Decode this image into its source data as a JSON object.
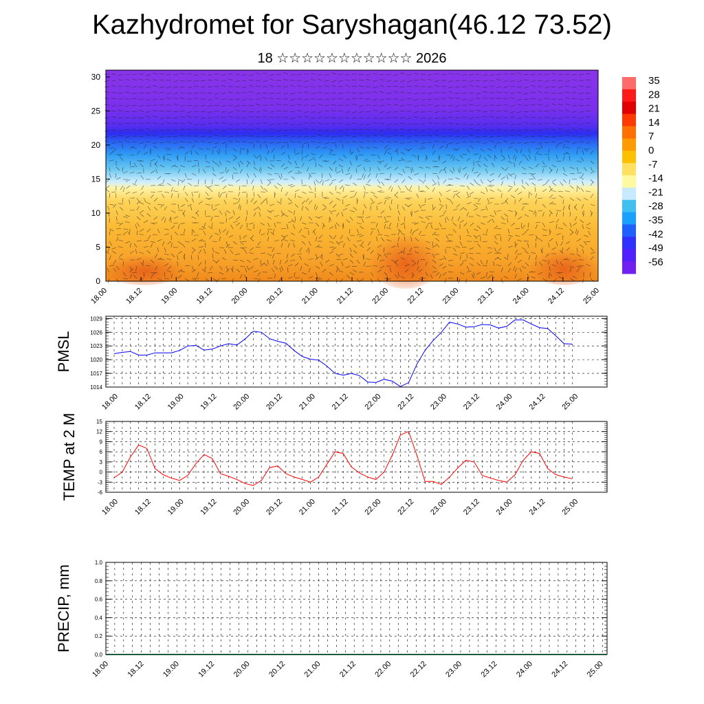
{
  "title": "Kazhydromet for Saryshagan(46.12 73.52)",
  "subtitle": "18 ☆☆☆☆☆☆☆☆☆☆☆ 2026",
  "time_ticks": [
    "18.00",
    "18.12",
    "19.00",
    "19.12",
    "20.00",
    "20.12",
    "21.00",
    "21.12",
    "22.00",
    "22.12",
    "23.00",
    "23.12",
    "24.00",
    "24.12",
    "25.00"
  ],
  "colors": {
    "pmsl_line": "#0000ff",
    "temp_line": "#ff0000",
    "frame": "#000000",
    "grid": "#000000"
  },
  "chart_data": [
    {
      "type": "heatmap",
      "name_hint": "vertical section",
      "y_ticks": [
        "0",
        "5",
        "10",
        "15",
        "20",
        "25",
        "30"
      ],
      "ylim": [
        0,
        31
      ],
      "x_range": [
        "18.00",
        "25.00"
      ],
      "colorbar": {
        "labels": [
          "35",
          "28",
          "21",
          "14",
          "7",
          "0",
          "-7",
          "-14",
          "-21",
          "-28",
          "-35",
          "-42",
          "-49",
          "-56"
        ],
        "palette": [
          "#ff6a6a",
          "#ff1a1a",
          "#e00000",
          "#ff3a00",
          "#ff7000",
          "#ff9a00",
          "#ffc000",
          "#ffe060",
          "#fffaa0",
          "#c8eaff",
          "#40c0f0",
          "#1aa0ff",
          "#2060ff",
          "#3030ff",
          "#5020ff",
          "#7020f0"
        ]
      },
      "vectors": "wind arrows (unlabeled)"
    },
    {
      "type": "line",
      "ylabel": "PMSL",
      "y_ticks": [
        "1014",
        "1017",
        "1020",
        "1023",
        "1026",
        "1029"
      ],
      "ylim": [
        1014,
        1029.5
      ],
      "x_step_hours": 3,
      "series": [
        {
          "values": [
            1021.3,
            1021.6,
            1021.8,
            1021.0,
            1021.0,
            1021.5,
            1021.5,
            1021.5,
            1022.0,
            1023.0,
            1023.1,
            1022.1,
            1022.3,
            1023.0,
            1023.5,
            1023.2,
            1024.5,
            1026.2,
            1026.0,
            1024.6,
            1024.0,
            1023.6,
            1022.0,
            1020.7,
            1020.1,
            1019.9,
            1018.6,
            1017.0,
            1016.6,
            1017.0,
            1016.5,
            1015.1,
            1015.0,
            1015.7,
            1015.3,
            1014.1,
            1015.0,
            1019.0,
            1022.0,
            1024.2,
            1026.0,
            1028.2,
            1027.8,
            1027.1,
            1027.2,
            1027.7,
            1027.6,
            1026.9,
            1027.3,
            1028.7,
            1028.7,
            1027.8,
            1027.0,
            1026.8,
            1025.2,
            1023.5,
            1023.4
          ]
        }
      ]
    },
    {
      "type": "line",
      "ylabel": "TEMP at 2 M",
      "y_ticks": [
        "-6",
        "-3",
        "0",
        "3",
        "6",
        "9",
        "12",
        "15"
      ],
      "ylim": [
        -6,
        15
      ],
      "x_step_hours": 3,
      "series": [
        {
          "values": [
            -1.7,
            0,
            4.5,
            8.0,
            7.0,
            1.0,
            -0.8,
            -1.8,
            -2.5,
            -1.0,
            2.5,
            5.2,
            4.0,
            -0.5,
            -1.3,
            -2.2,
            -3.4,
            -4.0,
            -2.5,
            1.3,
            1.8,
            -0.5,
            -1.5,
            -2.2,
            -3.0,
            -1.5,
            2.3,
            6.0,
            5.5,
            1.5,
            -0.3,
            -1.5,
            -2.2,
            0,
            5.0,
            11.0,
            12.0,
            5.0,
            -2.8,
            -2.8,
            -3.7,
            -1.5,
            1.2,
            3.5,
            3.0,
            -1.0,
            -1.8,
            -2.5,
            -3.0,
            -0.8,
            3.5,
            6.0,
            5.5,
            1.0,
            -0.8,
            -1.5,
            -2.0
          ]
        }
      ]
    },
    {
      "type": "bar",
      "ylabel": "PRECIP, mm",
      "y_ticks": [
        "0.0",
        "0.2",
        "0.4",
        "0.6",
        "0.8",
        "1.0"
      ],
      "ylim": [
        0,
        1.0
      ],
      "x_step_hours": 3,
      "values": [
        0,
        0,
        0,
        0,
        0,
        0,
        0,
        0,
        0,
        0,
        0,
        0,
        0,
        0,
        0,
        0,
        0,
        0,
        0,
        0,
        0,
        0,
        0,
        0,
        0,
        0,
        0,
        0,
        0,
        0,
        0,
        0,
        0,
        0,
        0,
        0,
        0,
        0,
        0,
        0,
        0,
        0,
        0,
        0,
        0,
        0,
        0,
        0,
        0,
        0,
        0,
        0,
        0,
        0,
        0,
        0,
        0
      ]
    }
  ]
}
